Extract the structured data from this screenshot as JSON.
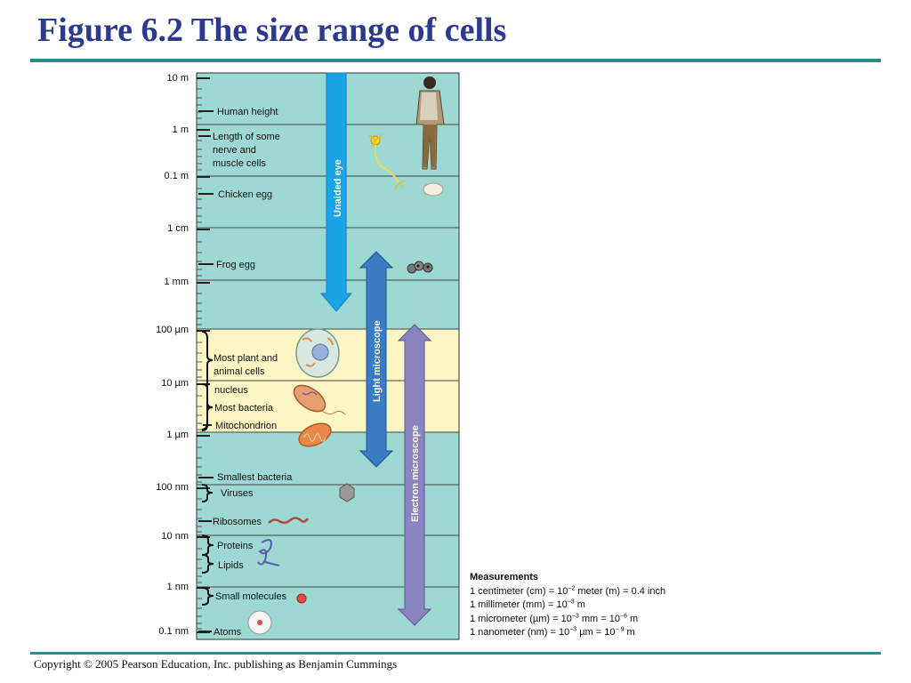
{
  "title": "Figure 6.2 The size range of cells",
  "copyright": "Copyright © 2005 Pearson Education, Inc. publishing as Benjamin Cummings",
  "scale": [
    "10 m",
    "1 m",
    "0.1 m",
    "1 cm",
    "1 mm",
    "100 µm",
    "10 µm",
    "1 µm",
    "100 nm",
    "10 nm",
    "1 nm",
    "0.1 nm"
  ],
  "objects": {
    "human_height": "Human height",
    "nerve_line1": "Length of some",
    "nerve_line2": "nerve and",
    "nerve_line3": "muscle cells",
    "chicken_egg": "Chicken egg",
    "frog_egg": "Frog egg",
    "cells_line1": "Most plant and",
    "cells_line2": "animal cells",
    "nucleus": "nucleus",
    "bacteria": "Most bacteria",
    "mitochondrion": "Mitochondrion",
    "smallest_bacteria": "Smallest bacteria",
    "viruses": "Viruses",
    "ribosomes": "Ribosomes",
    "proteins": "Proteins",
    "lipids": "Lipids",
    "small_molecules": "Small molecules",
    "atoms": "Atoms"
  },
  "ranges": {
    "unaided_eye": "Unaided eye",
    "light_microscope": "Light microscope",
    "electron_microscope": "Electron microscope"
  },
  "measurements": {
    "heading": "Measurements",
    "cm_a": "1 centimeter (cm) = 10",
    "cm_exp": "−2",
    "cm_b": " meter (m) = 0.4 inch",
    "mm_a": "1 millimeter (mm) = 10",
    "mm_exp": "−3",
    "mm_b": " m",
    "um_a": "1 micrometer (µm) = 10",
    "um_exp1": "−3",
    "um_b": " mm = 10",
    "um_exp2": "−6",
    "um_c": " m",
    "nm_a": "1 nanometer (nm) = 10",
    "nm_exp1": "−3",
    "nm_b": " µm = 10",
    "nm_exp2": "− 9",
    "nm_c": " m"
  },
  "colors": {
    "band": "#9ed8d3",
    "highlight": "#fcf6c4",
    "unaided_eye": "#1aa3e6",
    "light_microscope": "#3a7bc6",
    "electron_microscope": "#8a84c0",
    "title": "#2b3a8f"
  }
}
